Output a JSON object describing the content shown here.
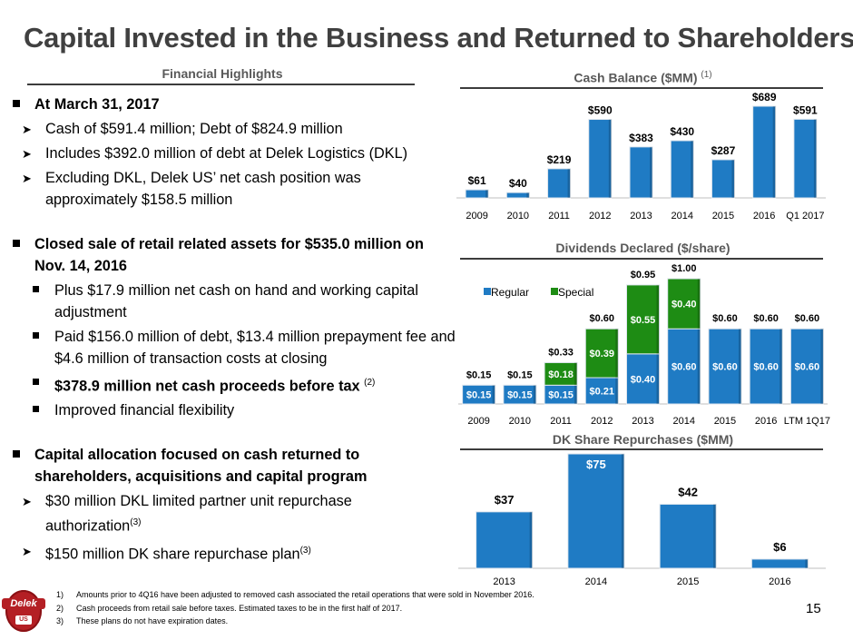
{
  "page": {
    "title": "Capital Invested in the Business and Returned to Shareholders",
    "page_number": "15"
  },
  "left": {
    "heading": "Financial Highlights",
    "sec1": {
      "head": "At March 31, 2017",
      "items": [
        "Cash of $591.4 million; Debt of $824.9 million",
        "Includes $392.0 million of debt at Delek Logistics (DKL)",
        "Excluding DKL, Delek US’ net cash position was approximately $158.5 million"
      ]
    },
    "sec2": {
      "head": "Closed sale of retail related assets for $535.0 million on Nov. 14, 2016",
      "items": [
        "Plus $17.9 million net cash on hand and working capital adjustment",
        "Paid $156.0 million of debt, $13.4 million prepayment fee and $4.6 million of transaction costs at closing",
        "$378.9 million net cash proceeds before tax",
        "Improved financial flexibility"
      ],
      "item3_note": "(2)"
    },
    "sec3": {
      "head": "Capital allocation focused on cash returned  to shareholders, acquisitions and capital program",
      "items": [
        "$30 million DKL limited partner unit repurchase authorization",
        "$150 million DK share repurchase plan"
      ],
      "notes": [
        "(3)",
        "(3)"
      ]
    }
  },
  "footnotes": [
    {
      "num": "1)",
      "text": "Amounts prior to 4Q16 have been adjusted to removed cash associated the retail operations that were sold in November 2016."
    },
    {
      "num": "2)",
      "text": "Cash proceeds from retail sale before taxes. Estimated taxes to be in the first half of 2017."
    },
    {
      "num": "3)",
      "text": "These plans do not have expiration dates."
    }
  ],
  "logo": {
    "text": "Delek",
    "sub": "US"
  },
  "colors": {
    "bar_blue": "#1f7bc4",
    "bar_green": "#1e8c14",
    "title_gray": "#404040",
    "header_gray": "#595959",
    "logo_red": "#b41f24"
  },
  "chart_data": [
    {
      "id": "cash",
      "type": "bar",
      "title": "Cash Balance ($MM)",
      "title_note": "(1)",
      "categories": [
        "2009",
        "2010",
        "2011",
        "2012",
        "2013",
        "2014",
        "2015",
        "2016",
        "Q1 2017"
      ],
      "values": [
        61,
        40,
        219,
        590,
        383,
        430,
        287,
        689,
        591
      ],
      "labels": [
        "$61",
        "$40",
        "$219",
        "$590",
        "$383",
        "$430",
        "$287",
        "$689",
        "$591"
      ],
      "ylim": [
        0,
        689
      ]
    },
    {
      "id": "div",
      "type": "bar",
      "stacked": true,
      "title": "Dividends Declared ($/share)",
      "categories": [
        "2009",
        "2010",
        "2011",
        "2012",
        "2013",
        "2014",
        "2015",
        "2016",
        "LTM 1Q17"
      ],
      "series": [
        {
          "name": "Regular",
          "values": [
            0.15,
            0.15,
            0.15,
            0.21,
            0.4,
            0.6,
            0.6,
            0.6,
            0.6
          ],
          "labels": [
            "$0.15",
            "$0.15",
            "$0.15",
            "$0.21",
            "$0.40",
            "$0.60",
            "$0.60",
            "$0.60",
            "$0.60"
          ]
        },
        {
          "name": "Special",
          "values": [
            0,
            0,
            0.18,
            0.39,
            0.55,
            0.4,
            0,
            0,
            0
          ],
          "labels": [
            "",
            "",
            "$0.18",
            "$0.39",
            "$0.55",
            "$0.40",
            "",
            "",
            ""
          ]
        }
      ],
      "totals": [
        "$0.15",
        "$0.15",
        "$0.33",
        "$0.60",
        "$0.95",
        "$1.00",
        "$0.60",
        "$0.60",
        "$0.60"
      ],
      "total_values": [
        0.15,
        0.15,
        0.33,
        0.6,
        0.95,
        1.0,
        0.6,
        0.6,
        0.6
      ],
      "legend": [
        "Regular",
        "Special"
      ],
      "ylim": [
        0,
        1.0
      ]
    },
    {
      "id": "rep",
      "type": "bar",
      "title": "DK Share Repurchases ($MM)",
      "categories": [
        "2013",
        "2014",
        "2015",
        "2016"
      ],
      "values": [
        37,
        75,
        42,
        6
      ],
      "labels": [
        "$37",
        "$75",
        "$42",
        "$6"
      ],
      "ylim": [
        0,
        75
      ]
    }
  ]
}
